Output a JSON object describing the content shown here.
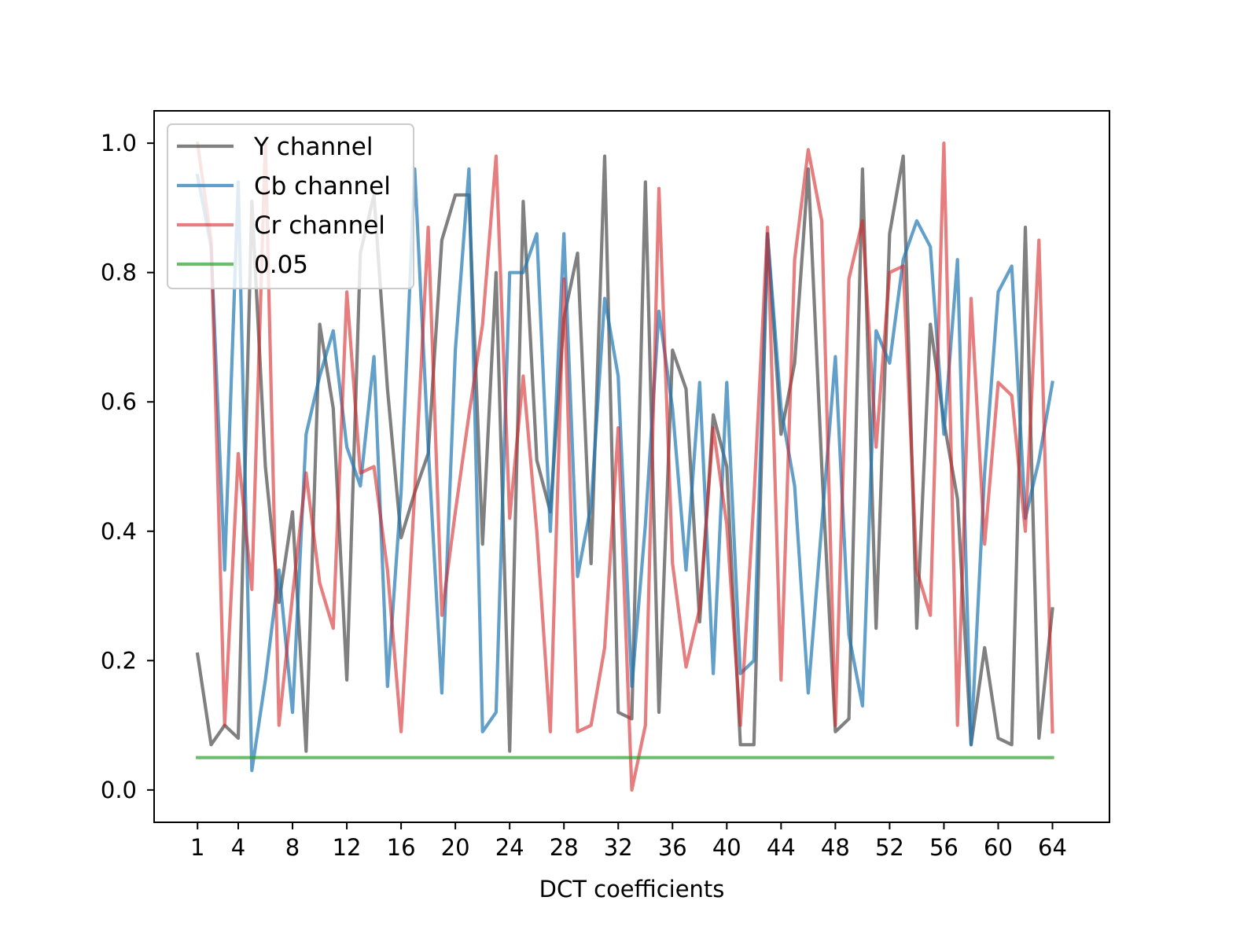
{
  "chart_data": {
    "type": "line",
    "title": "",
    "xlabel": "DCT coefficients",
    "ylabel": "",
    "xlim": [
      -2.2,
      68.2
    ],
    "ylim": [
      -0.05,
      1.05
    ],
    "xticks": [
      1,
      4,
      8,
      12,
      16,
      20,
      24,
      28,
      32,
      36,
      40,
      44,
      48,
      52,
      56,
      60,
      64
    ],
    "yticks": [
      0.0,
      0.2,
      0.4,
      0.6,
      0.8,
      1.0
    ],
    "ytick_labels": [
      "0.0",
      "0.2",
      "0.4",
      "0.6",
      "0.8",
      "1.0"
    ],
    "grid": false,
    "legend_position": "upper-left",
    "x": [
      1,
      2,
      3,
      4,
      5,
      6,
      7,
      8,
      9,
      10,
      11,
      12,
      13,
      14,
      15,
      16,
      17,
      18,
      19,
      20,
      21,
      22,
      23,
      24,
      25,
      26,
      27,
      28,
      29,
      30,
      31,
      32,
      33,
      34,
      35,
      36,
      37,
      38,
      39,
      40,
      41,
      42,
      43,
      44,
      45,
      46,
      47,
      48,
      49,
      50,
      51,
      52,
      53,
      54,
      55,
      56,
      57,
      58,
      59,
      60,
      61,
      62,
      63,
      64
    ],
    "series": [
      {
        "name": "Y channel",
        "color": "#555555",
        "opacity": 0.75,
        "values": [
          0.21,
          0.07,
          0.1,
          0.08,
          0.91,
          0.5,
          0.29,
          0.43,
          0.06,
          0.72,
          0.59,
          0.17,
          0.83,
          0.92,
          0.62,
          0.39,
          0.46,
          0.52,
          0.85,
          0.92,
          0.92,
          0.38,
          0.8,
          0.06,
          0.91,
          0.51,
          0.43,
          0.73,
          0.83,
          0.35,
          0.98,
          0.12,
          0.11,
          0.94,
          0.12,
          0.68,
          0.62,
          0.26,
          0.58,
          0.5,
          0.07,
          0.07,
          0.86,
          0.55,
          0.66,
          0.96,
          0.5,
          0.09,
          0.11,
          0.96,
          0.25,
          0.86,
          0.98,
          0.25,
          0.72,
          0.57,
          0.45,
          0.07,
          0.22,
          0.08,
          0.07,
          0.87,
          0.08,
          0.28
        ]
      },
      {
        "name": "Cb channel",
        "color": "#1f77b4",
        "opacity": 0.7,
        "values": [
          0.95,
          0.84,
          0.34,
          0.94,
          0.03,
          0.17,
          0.34,
          0.12,
          0.55,
          0.64,
          0.71,
          0.53,
          0.47,
          0.67,
          0.16,
          0.46,
          0.96,
          0.53,
          0.15,
          0.68,
          0.96,
          0.09,
          0.12,
          0.8,
          0.8,
          0.86,
          0.4,
          0.86,
          0.33,
          0.44,
          0.76,
          0.64,
          0.16,
          0.41,
          0.74,
          0.59,
          0.34,
          0.63,
          0.18,
          0.63,
          0.18,
          0.2,
          0.86,
          0.59,
          0.47,
          0.15,
          0.41,
          0.67,
          0.24,
          0.13,
          0.71,
          0.66,
          0.82,
          0.88,
          0.84,
          0.55,
          0.82,
          0.07,
          0.49,
          0.77,
          0.81,
          0.42,
          0.51,
          0.63
        ]
      },
      {
        "name": "Cr channel",
        "color": "#d62728",
        "opacity": 0.6,
        "values": [
          1.0,
          0.85,
          0.1,
          0.52,
          0.31,
          1.0,
          0.1,
          0.3,
          0.49,
          0.32,
          0.25,
          0.77,
          0.49,
          0.5,
          0.34,
          0.09,
          0.46,
          0.87,
          0.27,
          0.43,
          0.58,
          0.72,
          0.98,
          0.42,
          0.64,
          0.4,
          0.09,
          0.79,
          0.09,
          0.1,
          0.22,
          0.56,
          0.0,
          0.1,
          0.93,
          0.35,
          0.19,
          0.28,
          0.56,
          0.41,
          0.1,
          0.45,
          0.87,
          0.17,
          0.82,
          0.99,
          0.88,
          0.1,
          0.79,
          0.88,
          0.53,
          0.8,
          0.81,
          0.34,
          0.27,
          1.0,
          0.1,
          0.76,
          0.38,
          0.63,
          0.61,
          0.4,
          0.85,
          0.09
        ]
      },
      {
        "name": "0.05",
        "color": "#2ca02c",
        "opacity": 0.7,
        "values": [
          0.05,
          0.05,
          0.05,
          0.05,
          0.05,
          0.05,
          0.05,
          0.05,
          0.05,
          0.05,
          0.05,
          0.05,
          0.05,
          0.05,
          0.05,
          0.05,
          0.05,
          0.05,
          0.05,
          0.05,
          0.05,
          0.05,
          0.05,
          0.05,
          0.05,
          0.05,
          0.05,
          0.05,
          0.05,
          0.05,
          0.05,
          0.05,
          0.05,
          0.05,
          0.05,
          0.05,
          0.05,
          0.05,
          0.05,
          0.05,
          0.05,
          0.05,
          0.05,
          0.05,
          0.05,
          0.05,
          0.05,
          0.05,
          0.05,
          0.05,
          0.05,
          0.05,
          0.05,
          0.05,
          0.05,
          0.05,
          0.05,
          0.05,
          0.05,
          0.05,
          0.05,
          0.05,
          0.05,
          0.05
        ]
      }
    ]
  }
}
